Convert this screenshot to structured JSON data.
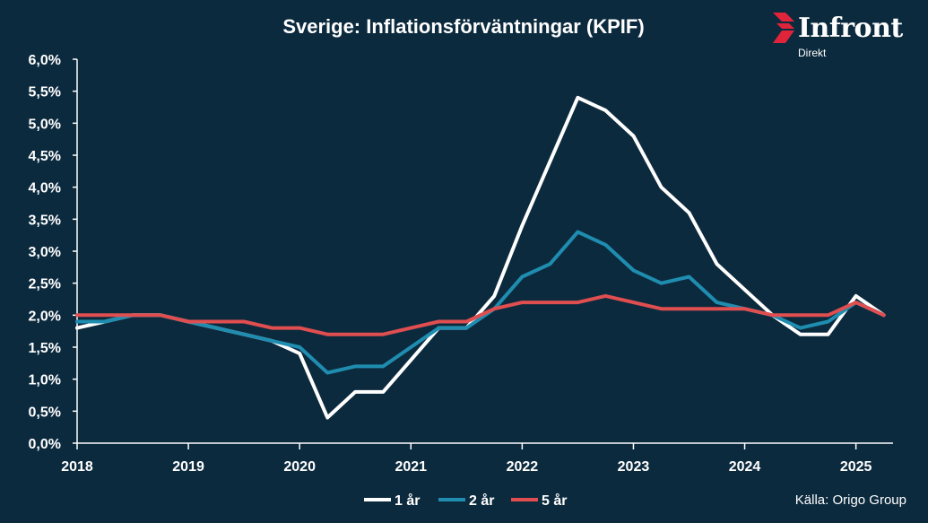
{
  "chart_data": {
    "type": "line",
    "title": "Sverige: Inflationsförväntningar (KPIF)",
    "xlabel": "",
    "ylabel": "",
    "x_ticks": [
      "2018",
      "2019",
      "2020",
      "2021",
      "2022",
      "2023",
      "2024",
      "2025"
    ],
    "y_ticks": [
      "0,0%",
      "0,5%",
      "1,0%",
      "1,5%",
      "2,0%",
      "2,5%",
      "3,0%",
      "3,5%",
      "4,0%",
      "4,5%",
      "5,0%",
      "5,5%",
      "6,0%"
    ],
    "ylim": [
      0,
      6
    ],
    "xlim": [
      "2018-01-01",
      "2025-05-01"
    ],
    "grid": false,
    "legend_position": "bottom-center",
    "x": [
      "2018-01",
      "2018-04",
      "2018-07",
      "2018-10",
      "2019-01",
      "2019-04",
      "2019-07",
      "2019-10",
      "2020-01",
      "2020-04",
      "2020-07",
      "2020-10",
      "2021-01",
      "2021-04",
      "2021-07",
      "2021-10",
      "2022-01",
      "2022-04",
      "2022-07",
      "2022-10",
      "2023-01",
      "2023-04",
      "2023-07",
      "2023-10",
      "2024-01",
      "2024-04",
      "2024-07",
      "2024-10",
      "2025-01",
      "2025-04"
    ],
    "series": [
      {
        "name": "1 år",
        "color": "#ffffff",
        "values": [
          1.8,
          1.9,
          2.0,
          2.0,
          1.9,
          1.8,
          1.7,
          1.6,
          1.4,
          0.4,
          0.8,
          0.8,
          1.3,
          1.8,
          1.8,
          2.3,
          3.4,
          4.4,
          5.4,
          5.2,
          4.8,
          4.0,
          3.6,
          2.8,
          2.4,
          2.0,
          1.7,
          1.7,
          2.3,
          2.0
        ]
      },
      {
        "name": "2 år",
        "color": "#1f8db0",
        "values": [
          1.9,
          1.9,
          2.0,
          2.0,
          1.9,
          1.8,
          1.7,
          1.6,
          1.5,
          1.1,
          1.2,
          1.2,
          1.5,
          1.8,
          1.8,
          2.1,
          2.6,
          2.8,
          3.3,
          3.1,
          2.7,
          2.5,
          2.6,
          2.2,
          2.1,
          2.0,
          1.8,
          1.9,
          2.2,
          2.0
        ]
      },
      {
        "name": "5 år",
        "color": "#e04e50",
        "values": [
          2.0,
          2.0,
          2.0,
          2.0,
          1.9,
          1.9,
          1.9,
          1.8,
          1.8,
          1.7,
          1.7,
          1.7,
          1.8,
          1.9,
          1.9,
          2.1,
          2.2,
          2.2,
          2.2,
          2.3,
          2.2,
          2.1,
          2.1,
          2.1,
          2.1,
          2.0,
          2.0,
          2.0,
          2.2,
          2.0
        ]
      }
    ]
  },
  "logo": {
    "name": "Infront",
    "sub": "Direkt",
    "icon": "infront-logo-icon",
    "accent": "#e0243a"
  },
  "source": "Källa:  Origo Group",
  "colors": {
    "background": "#0c2a3e",
    "text": "#ffffff"
  }
}
